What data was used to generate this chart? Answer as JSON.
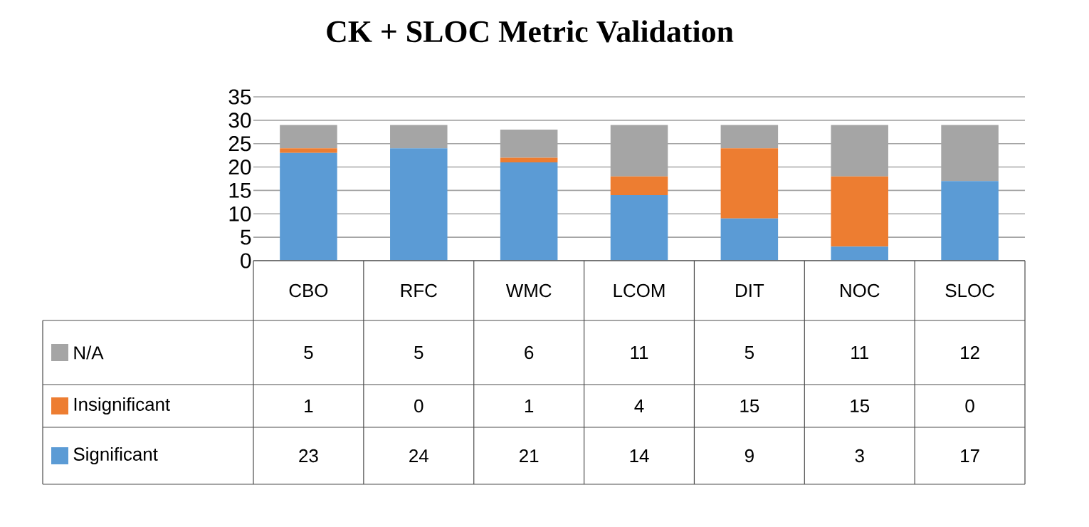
{
  "chart_data": {
    "type": "bar",
    "title": "CK + SLOC Metric Validation",
    "categories": [
      "CBO",
      "RFC",
      "WMC",
      "LCOM",
      "DIT",
      "NOC",
      "SLOC"
    ],
    "series": [
      {
        "name": "Significant",
        "color": "#5b9bd5",
        "values": [
          23,
          24,
          21,
          14,
          9,
          3,
          17
        ]
      },
      {
        "name": "Insignificant",
        "color": "#ed7d31",
        "values": [
          1,
          0,
          1,
          4,
          15,
          15,
          0
        ]
      },
      {
        "name": "N/A",
        "color": "#a5a5a5",
        "values": [
          5,
          5,
          6,
          11,
          5,
          11,
          12
        ]
      }
    ],
    "stacked": true,
    "ylim": [
      0,
      35
    ],
    "yticks": [
      0,
      5,
      10,
      15,
      20,
      25,
      30,
      35
    ],
    "grid": "y",
    "legend": "bottom left",
    "data_labels": true,
    "tick_labels": "y"
  }
}
